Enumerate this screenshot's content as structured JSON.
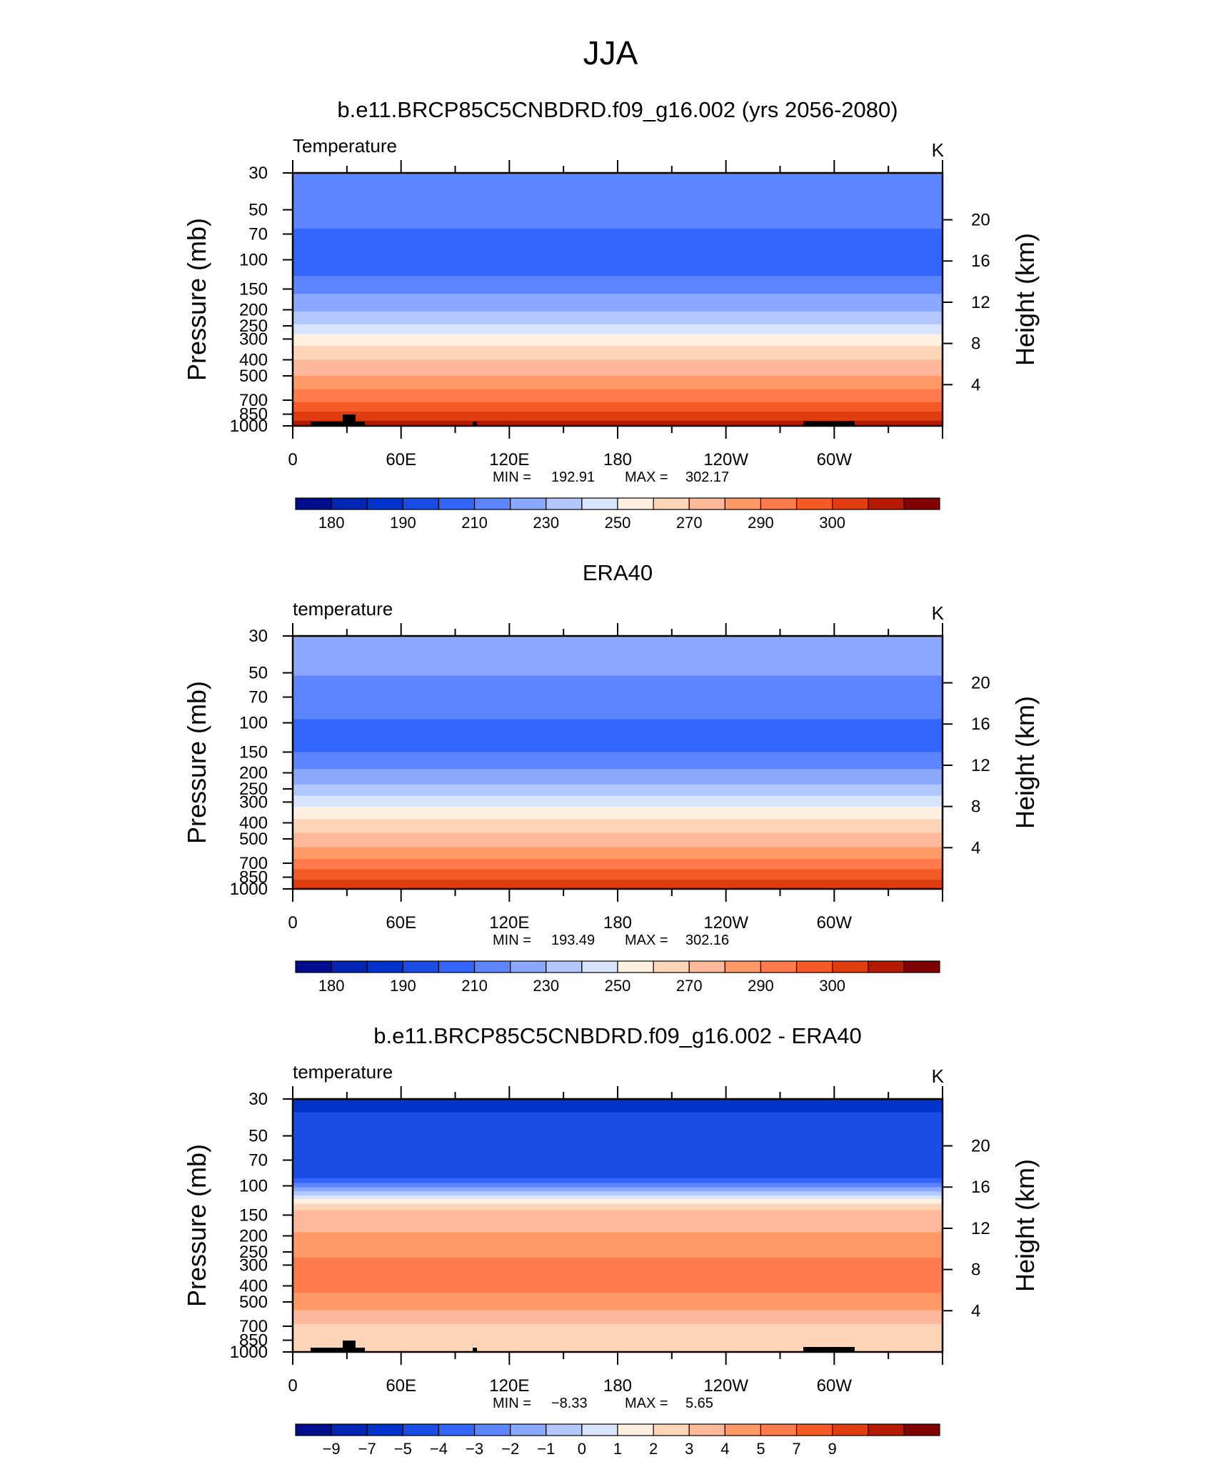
{
  "figure": {
    "title": "JJA"
  },
  "chart_data": [
    {
      "type": "heatmap",
      "title": "b.e11.BRCP85C5CNBDRD.f09_g16.002 (yrs 2056-2080)",
      "left_label": "Temperature",
      "unit": "K",
      "ylabel": "Pressure  (mb)",
      "y2label": "Height  (km)",
      "x_ticks": [
        "0",
        "60E",
        "120E",
        "180",
        "120W",
        "60W"
      ],
      "y_ticks": [
        "30",
        "50",
        "70",
        "100",
        "150",
        "200",
        "250",
        "300",
        "400",
        "500",
        "700",
        "850",
        "1000"
      ],
      "y2_ticks": [
        "20",
        "16",
        "12",
        "8",
        "4"
      ],
      "min_label": "MIN = ",
      "min": "192.91",
      "max_label": "MAX = ",
      "max": "302.17",
      "colorbar_ticks": [
        "180",
        "190",
        "210",
        "230",
        "250",
        "270",
        "290",
        "300"
      ],
      "colors": [
        "#000d8c",
        "#0026b3",
        "#0033cc",
        "#1a4de6",
        "#3366ff",
        "#5c85ff",
        "#8aa8ff",
        "#b3c8ff",
        "#d9e4ff",
        "#fff0e0",
        "#ffd5b8",
        "#ffb899",
        "#ff9966",
        "#ff7a4d",
        "#f55a26",
        "#e03d10",
        "#b31a00",
        "#800000"
      ],
      "levels": [
        175,
        180,
        185,
        190,
        200,
        210,
        220,
        230,
        240,
        250,
        260,
        270,
        275,
        280,
        285,
        290,
        295,
        300
      ],
      "profile": [
        {
          "p": 30,
          "v": 210
        },
        {
          "p": 50,
          "v": 210
        },
        {
          "p": 65,
          "v": 200
        },
        {
          "p": 110,
          "v": 200
        },
        {
          "p": 125,
          "v": 210
        },
        {
          "p": 160,
          "v": 220
        },
        {
          "p": 205,
          "v": 230
        },
        {
          "p": 245,
          "v": 240
        },
        {
          "p": 280,
          "v": 250
        },
        {
          "p": 330,
          "v": 260
        },
        {
          "p": 400,
          "v": 270
        },
        {
          "p": 500,
          "v": 275
        },
        {
          "p": 600,
          "v": 280
        },
        {
          "p": 720,
          "v": 285
        },
        {
          "p": 820,
          "v": 290
        },
        {
          "p": 930,
          "v": 295
        },
        {
          "p": 1000,
          "v": 298
        }
      ],
      "terrain": true
    },
    {
      "type": "heatmap",
      "title": "ERA40",
      "left_label": "temperature",
      "unit": "K",
      "ylabel": "Pressure  (mb)",
      "y2label": "Height  (km)",
      "x_ticks": [
        "0",
        "60E",
        "120E",
        "180",
        "120W",
        "60W"
      ],
      "y_ticks": [
        "30",
        "50",
        "70",
        "100",
        "150",
        "200",
        "250",
        "300",
        "400",
        "500",
        "700",
        "850",
        "1000"
      ],
      "y2_ticks": [
        "20",
        "16",
        "12",
        "8",
        "4"
      ],
      "min_label": "MIN = ",
      "min": "193.49",
      "max_label": "MAX = ",
      "max": "302.16",
      "colorbar_ticks": [
        "180",
        "190",
        "210",
        "230",
        "250",
        "270",
        "290",
        "300"
      ],
      "colors": [
        "#000d8c",
        "#0026b3",
        "#0033cc",
        "#1a4de6",
        "#3366ff",
        "#5c85ff",
        "#8aa8ff",
        "#b3c8ff",
        "#d9e4ff",
        "#fff0e0",
        "#ffd5b8",
        "#ffb899",
        "#ff9966",
        "#ff7a4d",
        "#f55a26",
        "#e03d10",
        "#b31a00",
        "#800000"
      ],
      "levels": [
        175,
        180,
        185,
        190,
        200,
        210,
        220,
        230,
        240,
        250,
        260,
        270,
        275,
        280,
        285,
        290,
        295,
        300
      ],
      "profile": [
        {
          "p": 30,
          "v": 220
        },
        {
          "p": 48,
          "v": 220
        },
        {
          "p": 52,
          "v": 210
        },
        {
          "p": 90,
          "v": 210
        },
        {
          "p": 95,
          "v": 200
        },
        {
          "p": 140,
          "v": 200
        },
        {
          "p": 150,
          "v": 210
        },
        {
          "p": 190,
          "v": 220
        },
        {
          "p": 235,
          "v": 230
        },
        {
          "p": 275,
          "v": 240
        },
        {
          "p": 320,
          "v": 250
        },
        {
          "p": 380,
          "v": 260
        },
        {
          "p": 460,
          "v": 270
        },
        {
          "p": 560,
          "v": 275
        },
        {
          "p": 660,
          "v": 280
        },
        {
          "p": 760,
          "v": 285
        },
        {
          "p": 880,
          "v": 290
        },
        {
          "p": 1000,
          "v": 295
        }
      ],
      "terrain": false
    },
    {
      "type": "heatmap",
      "title": "b.e11.BRCP85C5CNBDRD.f09_g16.002 - ERA40",
      "left_label": "temperature",
      "unit": "K",
      "ylabel": "Pressure  (mb)",
      "y2label": "Height  (km)",
      "x_ticks": [
        "0",
        "60E",
        "120E",
        "180",
        "120W",
        "60W"
      ],
      "y_ticks": [
        "30",
        "50",
        "70",
        "100",
        "150",
        "200",
        "250",
        "300",
        "400",
        "500",
        "700",
        "850",
        "1000"
      ],
      "y2_ticks": [
        "20",
        "16",
        "12",
        "8",
        "4"
      ],
      "min_label": "MIN = ",
      "min": "−8.33",
      "max_label": "MAX = ",
      "max": "5.65",
      "colorbar_ticks": [
        "−9",
        "−7",
        "−5",
        "−4",
        "−3",
        "−2",
        "−1",
        "0",
        "1",
        "2",
        "3",
        "4",
        "5",
        "7",
        "9"
      ],
      "colors": [
        "#000d8c",
        "#0026b3",
        "#0033cc",
        "#1a4de6",
        "#3366ff",
        "#5c85ff",
        "#8aa8ff",
        "#b3c8ff",
        "#d9e4ff",
        "#fff0e0",
        "#ffd5b8",
        "#ffb899",
        "#ff9966",
        "#ff7a4d",
        "#f55a26",
        "#e03d10",
        "#b31a00",
        "#800000"
      ],
      "levels": [
        -11,
        -9,
        -8,
        -7,
        -5,
        -4,
        -3,
        -2,
        -1,
        0,
        1,
        2,
        3,
        4,
        5,
        7,
        9,
        11
      ],
      "profile": [
        {
          "p": 30,
          "v": -8
        },
        {
          "p": 34,
          "v": -8
        },
        {
          "p": 36,
          "v": -7
        },
        {
          "p": 80,
          "v": -7
        },
        {
          "p": 90,
          "v": -5
        },
        {
          "p": 96,
          "v": -4
        },
        {
          "p": 102,
          "v": -3
        },
        {
          "p": 108,
          "v": -2
        },
        {
          "p": 114,
          "v": -1
        },
        {
          "p": 120,
          "v": 0
        },
        {
          "p": 128,
          "v": 1
        },
        {
          "p": 140,
          "v": 2
        },
        {
          "p": 190,
          "v": 3
        },
        {
          "p": 270,
          "v": 4
        },
        {
          "p": 380,
          "v": 4
        },
        {
          "p": 440,
          "v": 3
        },
        {
          "p": 560,
          "v": 2
        },
        {
          "p": 680,
          "v": 1
        },
        {
          "p": 800,
          "v": 1
        },
        {
          "p": 1000,
          "v": 2
        }
      ],
      "terrain": true
    }
  ]
}
